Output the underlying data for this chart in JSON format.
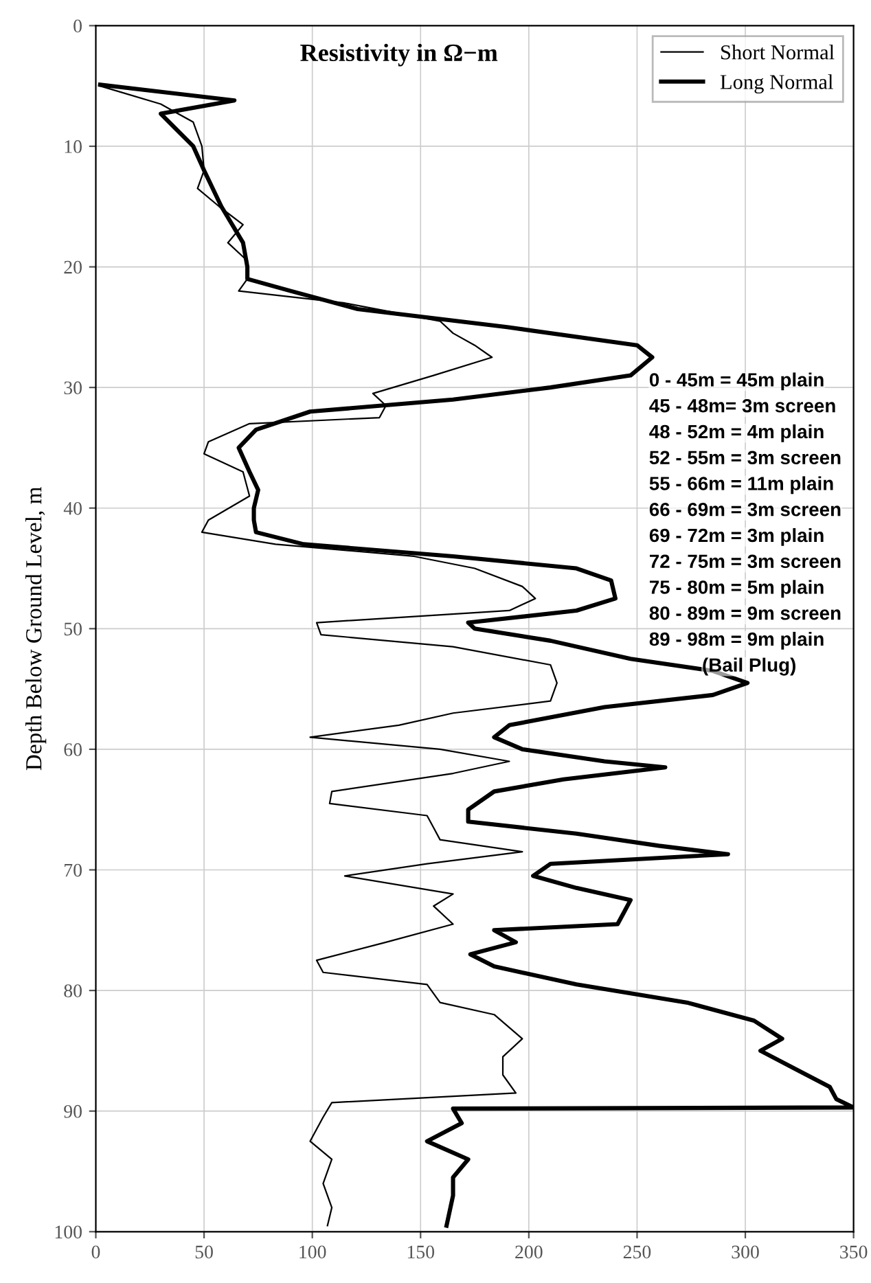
{
  "chart_data": {
    "type": "line",
    "title": "Resistivity in Ω−m",
    "ylabel": "Depth Below Ground Level, m",
    "xlim": [
      0,
      350
    ],
    "xticks": [
      0,
      50,
      100,
      150,
      200,
      250,
      300,
      350
    ],
    "ylim": [
      100,
      0
    ],
    "yticks": [
      0,
      10,
      20,
      30,
      40,
      50,
      60,
      70,
      80,
      90,
      100
    ],
    "grid": true,
    "legend": "top right",
    "line_style": "solid",
    "marker": "none",
    "series": [
      {
        "name": "Short Normal",
        "color": "#000000",
        "x": [
          2,
          30,
          45,
          49,
          50,
          47,
          57,
          68,
          61,
          70,
          70,
          66,
          115,
          159,
          165,
          175,
          183,
          156,
          128,
          134,
          131,
          71,
          52,
          50,
          68,
          71,
          52,
          49,
          83,
          147,
          175,
          197,
          203,
          191,
          102,
          104,
          165,
          210,
          213,
          210,
          165,
          140,
          99,
          159,
          191,
          165,
          109,
          108,
          153,
          156,
          159,
          197,
          153,
          115,
          165,
          156,
          165,
          134,
          102,
          105,
          153,
          159,
          184,
          197,
          188,
          188,
          194,
          109,
          105,
          99,
          109,
          105,
          109,
          107
        ],
        "values": [
          5,
          6.5,
          8,
          10,
          12,
          13.5,
          15,
          16.5,
          18,
          19.5,
          21,
          22,
          23,
          24.5,
          25.5,
          26.5,
          27.5,
          29,
          30.5,
          31.5,
          32.5,
          33,
          34.5,
          35.5,
          37,
          39,
          41,
          42,
          43,
          44,
          45,
          46.5,
          47.5,
          48.5,
          49.5,
          50.5,
          51.5,
          53,
          54.5,
          56,
          57,
          58,
          59,
          60,
          61,
          62,
          63.5,
          64.5,
          65.5,
          66.5,
          67.5,
          68.5,
          69.5,
          70.5,
          72,
          73,
          74.5,
          76,
          77.5,
          78.5,
          79.5,
          81,
          82,
          84,
          85.5,
          87,
          88.5,
          89.3,
          90.5,
          92.5,
          94,
          96,
          98,
          99.5
        ]
      },
      {
        "name": "Long Normal",
        "color": "#000000",
        "x": [
          2,
          64,
          30,
          45,
          50,
          58,
          68,
          70,
          70,
          90,
          121,
          190,
          250,
          257,
          247,
          210,
          165,
          99,
          74,
          66,
          71,
          75,
          73,
          73,
          74,
          96,
          165,
          222,
          238,
          240,
          222,
          172,
          175,
          210,
          247,
          285,
          301,
          285,
          235,
          191,
          184,
          197,
          235,
          263,
          216,
          184,
          172,
          172,
          222,
          260,
          292,
          210,
          202,
          222,
          247,
          244,
          241,
          184,
          194,
          173,
          184,
          222,
          273,
          304,
          317,
          307,
          323,
          339,
          342,
          350,
          165,
          169,
          153,
          172,
          165,
          165,
          162
        ],
        "values": [
          4.9,
          6.2,
          7.3,
          10,
          12,
          15,
          18,
          20,
          21,
          22,
          23.5,
          25,
          26.5,
          27.5,
          29,
          30,
          31,
          32,
          33.5,
          35,
          37,
          38.5,
          40,
          41,
          42,
          43,
          44,
          45,
          46,
          47.5,
          48.5,
          49.5,
          50,
          51,
          52.5,
          53.5,
          54.5,
          55.5,
          56.5,
          58,
          59,
          60,
          61,
          61.5,
          62.5,
          63.5,
          65,
          66,
          67,
          68,
          68.7,
          69.5,
          70.5,
          71.5,
          72.5,
          73.5,
          74.5,
          75,
          76,
          77,
          78,
          79.5,
          81,
          82.5,
          84,
          85,
          86.5,
          88,
          89,
          89.7,
          89.8,
          91,
          92.5,
          94,
          95.5,
          97,
          99.5
        ]
      }
    ],
    "annotations": [
      "0 - 45m = 45m plain",
      "45 - 48m= 3m screen",
      "48 - 52m = 4m plain",
      "52 - 55m = 3m screen",
      "55 - 66m = 11m plain",
      "66 - 69m = 3m screen",
      "69 - 72m = 3m plain",
      "72 - 75m = 3m screen",
      "75 - 80m = 5m plain",
      "80 - 89m = 9m screen",
      "89 - 98m = 9m plain",
      "(Bail Plug)"
    ]
  }
}
